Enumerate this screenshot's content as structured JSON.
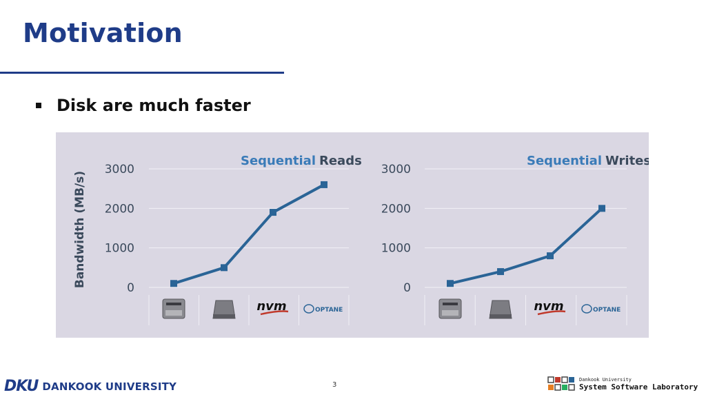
{
  "slide": {
    "title": "Motivation",
    "bullet": "Disk are much faster",
    "page_number": "3"
  },
  "footer": {
    "university_mark": "DKU",
    "university_name": "DANKOOK UNIVERSITY",
    "lab_univ": "Dankook University",
    "lab_name": "System Software Laboratory"
  },
  "colors": {
    "title_blue": "#1f3c88",
    "series_line": "#2a6496",
    "title_word_blue": "#3a7bb8",
    "panel_bg": "#dad7e3"
  },
  "chart_data": [
    {
      "type": "line",
      "title_highlight": "Sequential",
      "title_rest": "Reads",
      "ylabel": "Bandwidth (MB/s)",
      "ylim": [
        0,
        3000
      ],
      "yticks": [
        "0",
        "1000",
        "2000",
        "3000"
      ],
      "categories": [
        "hdd-icon",
        "ssd-icon",
        "nvm-express-icon",
        "intel-optane-icon"
      ],
      "category_labels": [
        "",
        "",
        "nvm",
        "OPTANE"
      ],
      "series": [
        {
          "values": [
            100,
            500,
            1900,
            2600
          ]
        }
      ],
      "grid": true
    },
    {
      "type": "line",
      "title_highlight": "Sequential",
      "title_rest": "Writes",
      "ylabel": "",
      "ylim": [
        0,
        3000
      ],
      "yticks": [
        "0",
        "1000",
        "2000",
        "3000"
      ],
      "categories": [
        "hdd-icon",
        "ssd-icon",
        "nvm-express-icon",
        "intel-optane-icon"
      ],
      "category_labels": [
        "",
        "",
        "nvm",
        "OPTANE"
      ],
      "series": [
        {
          "values": [
            100,
            400,
            800,
            2000
          ]
        }
      ],
      "grid": true
    }
  ]
}
